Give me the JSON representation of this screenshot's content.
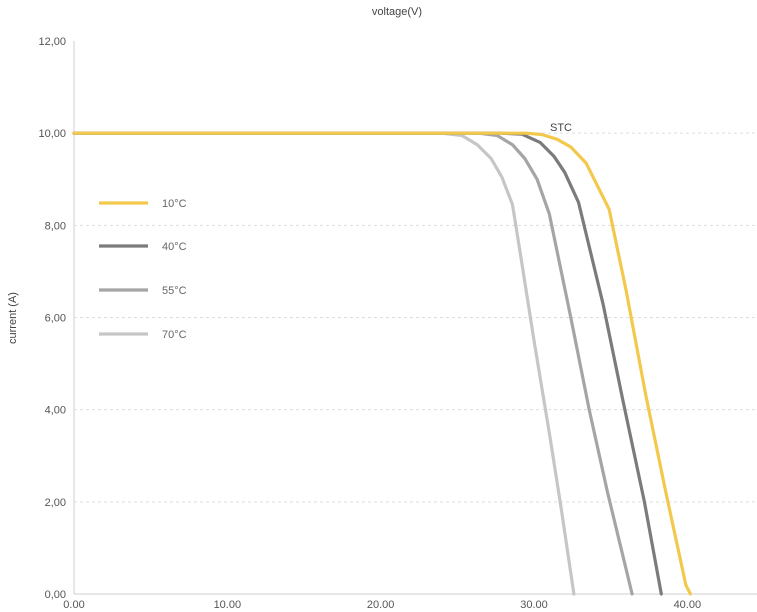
{
  "chart_data": {
    "type": "line",
    "title": "voltage(V)",
    "xlabel": "",
    "ylabel": "current (A)",
    "xlim": [
      0,
      45
    ],
    "ylim": [
      0,
      12
    ],
    "x_ticks": [
      "0.00",
      "10.00",
      "20.00",
      "30.00",
      "40.00"
    ],
    "y_ticks": [
      "0,00",
      "2,00",
      "4,00",
      "6,00",
      "8,00",
      "10,00",
      "12,00"
    ],
    "grid": "horizontal dashed",
    "legend_placement": "left",
    "annotation": {
      "text": "STC",
      "x": 31.2,
      "y": 10.1
    },
    "series": [
      {
        "name": "10°C",
        "color": "#f2c94c",
        "x": [
          0,
          28.0,
          29.5,
          30.5,
          31.5,
          32.4,
          33.4,
          34.0,
          34.9,
          36.0,
          37.3,
          38.6,
          39.9,
          40.2
        ],
        "y": [
          10.0,
          10.0,
          10.0,
          9.97,
          9.87,
          9.7,
          9.35,
          8.95,
          8.35,
          6.6,
          4.3,
          2.2,
          0.2,
          0.0
        ]
      },
      {
        "name": "40°C",
        "color": "#7b7b7b",
        "x": [
          0,
          26.0,
          27.8,
          29.2,
          30.4,
          31.3,
          32.0,
          32.9,
          34.5,
          35.8,
          37.2,
          38.3
        ],
        "y": [
          10.0,
          10.0,
          10.0,
          9.98,
          9.8,
          9.5,
          9.15,
          8.5,
          6.3,
          4.2,
          2.0,
          0.0
        ]
      },
      {
        "name": "55°C",
        "color": "#a5a5a5",
        "x": [
          0,
          24.5,
          26.4,
          27.6,
          28.6,
          29.4,
          30.2,
          31.0,
          32.4,
          33.6,
          34.8,
          36.4
        ],
        "y": [
          10.0,
          10.0,
          10.0,
          9.95,
          9.75,
          9.45,
          9.0,
          8.25,
          6.0,
          4.0,
          2.2,
          0.0
        ]
      },
      {
        "name": "70°C",
        "color": "#c6c6c6",
        "x": [
          0,
          20.5,
          24.0,
          25.3,
          26.3,
          27.2,
          27.9,
          28.6,
          29.2,
          30.0,
          31.0,
          31.8,
          32.6
        ],
        "y": [
          10.0,
          10.0,
          10.0,
          9.95,
          9.75,
          9.45,
          9.05,
          8.45,
          7.2,
          5.5,
          3.5,
          1.8,
          0.0
        ]
      }
    ]
  }
}
